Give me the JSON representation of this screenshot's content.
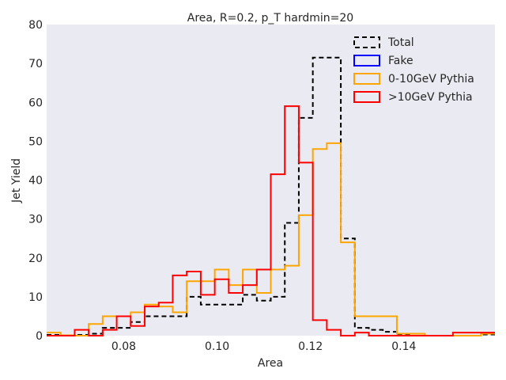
{
  "chart_data": {
    "type": "line",
    "title": "Area, R=0.2, p_T hardmin=20",
    "xlabel": "Area",
    "ylabel": "Jet Yield",
    "xlim": [
      0.0635,
      0.1595
    ],
    "ylim": [
      0,
      80
    ],
    "x_ticks": [
      0.08,
      0.1,
      0.12,
      0.14
    ],
    "x_tick_labels": [
      "0.08",
      "0.10",
      "0.12",
      "0.14"
    ],
    "y_ticks": [
      0,
      10,
      20,
      30,
      40,
      50,
      60,
      70,
      80
    ],
    "y_tick_labels": [
      "0",
      "10",
      "20",
      "30",
      "40",
      "50",
      "60",
      "70",
      "80"
    ],
    "grid": false,
    "background": "#eaeaf2",
    "legend_position": "top-right",
    "bin_edges": [
      0.0635,
      0.0665,
      0.0695,
      0.0725,
      0.0755,
      0.0785,
      0.0815,
      0.0845,
      0.0875,
      0.0905,
      0.0935,
      0.0965,
      0.0995,
      0.1025,
      0.1055,
      0.1085,
      0.1115,
      0.1145,
      0.1175,
      0.1205,
      0.1235,
      0.1265,
      0.1295,
      0.1325,
      0.1355,
      0.1385,
      0.1415,
      0.1445,
      0.1475,
      0.1505,
      0.1535,
      0.1565,
      0.1595
    ],
    "series": [
      {
        "name": "Total",
        "color": "#000000",
        "dash": "dashed",
        "values": [
          0.2,
          0.1,
          0.2,
          0.5,
          2,
          2,
          3.5,
          5,
          5,
          5,
          10,
          8,
          8,
          8,
          10.5,
          9,
          10,
          29,
          56,
          71.5,
          71.5,
          25,
          2,
          1.5,
          1,
          0.1,
          0,
          0,
          0,
          0,
          0,
          0.3
        ]
      },
      {
        "name": "Fake",
        "color": "#0000ff",
        "dash": "solid",
        "values": []
      },
      {
        "name": "0-10GeV Pythia",
        "color": "#ffa500",
        "dash": "solid",
        "values": [
          0.8,
          0.1,
          0,
          3,
          5,
          5,
          6,
          8,
          7.5,
          6,
          14,
          14,
          17,
          13,
          17,
          11,
          17,
          18,
          31,
          48,
          49.5,
          24,
          5,
          5,
          5,
          0.5,
          0.5,
          0,
          0,
          0,
          0,
          0.5
        ]
      },
      {
        "name": ">10GeV Pythia",
        "color": "#ff0000",
        "dash": "solid",
        "values": [
          0,
          0,
          1.5,
          0,
          1.5,
          5,
          2.5,
          7.5,
          8.5,
          15.5,
          16.5,
          10.5,
          14.5,
          11,
          13,
          17,
          41.5,
          59,
          44.5,
          4,
          1.5,
          0,
          0.8,
          0,
          0,
          0,
          0,
          0,
          0,
          0.8,
          0.8,
          0.8
        ]
      }
    ]
  }
}
